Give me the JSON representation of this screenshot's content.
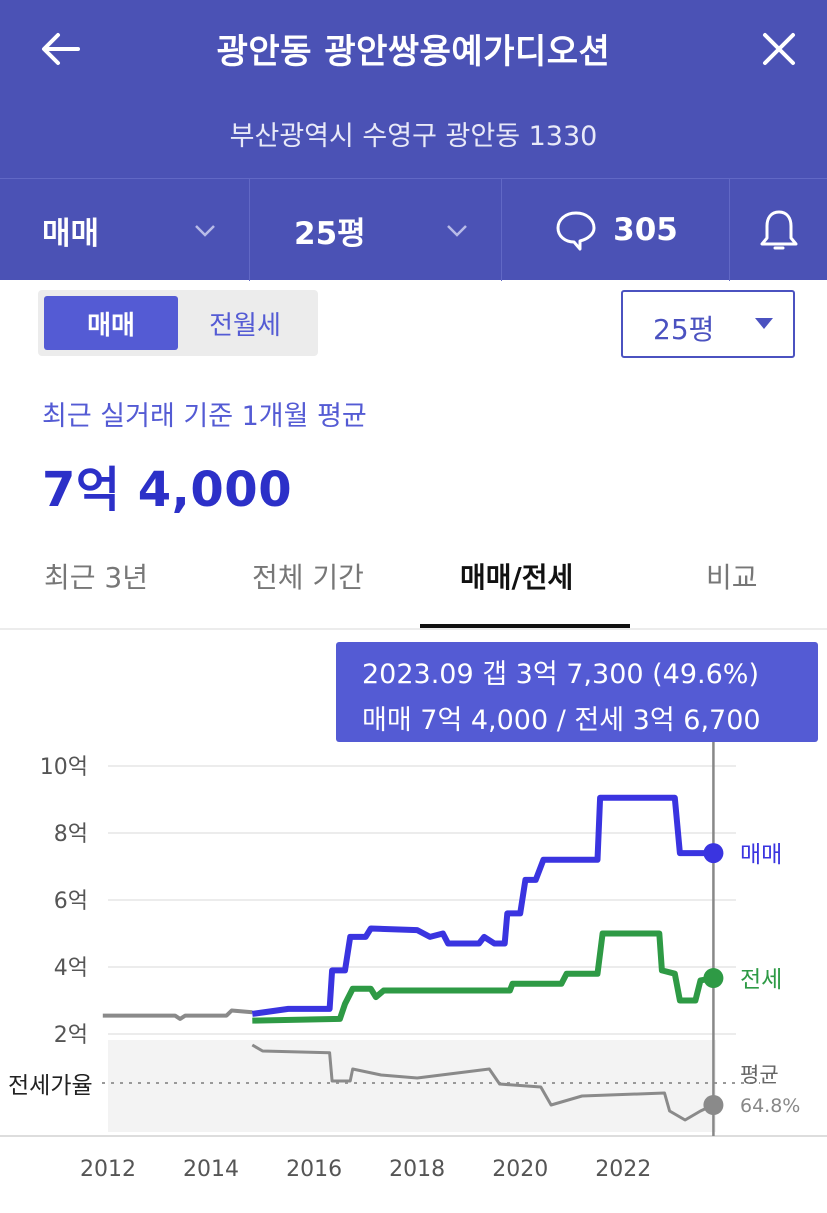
{
  "header": {
    "title": "광안동 광안쌍용예가디오션",
    "address": "부산광역시 수영구 광안동 1330",
    "deal_type": "매매",
    "size": "25평",
    "comment_count": "305"
  },
  "toggle": {
    "active": "매매",
    "inactive": "전월세"
  },
  "size_select": {
    "value": "25평"
  },
  "summary": {
    "label": "최근 실거래 기준 1개월 평균",
    "price": "7억 4,000"
  },
  "tabs": [
    {
      "label": "최근 3년",
      "active": false
    },
    {
      "label": "전체 기간",
      "active": false
    },
    {
      "label": "매매/전세",
      "active": true
    },
    {
      "label": "비교",
      "active": false
    }
  ],
  "tooltip": {
    "line1": "2023.09  갭 3억 7,300 (49.6%)",
    "line2": "매매 7억 4,000 / 전세 3억 6,700"
  },
  "colors": {
    "header": "#4b52b5",
    "accent": "#545bd4",
    "sale": "#3a34e0",
    "jeonse": "#2e9a45",
    "ratio": "#8a8a8a"
  },
  "chart_data": {
    "type": "line",
    "ylabel_ticks": [
      "10억",
      "8억",
      "6억",
      "4억",
      "2억"
    ],
    "y_tick_values": [
      10,
      8,
      6,
      4,
      2
    ],
    "ylim": [
      1.0,
      10.5
    ],
    "xlim": [
      2012,
      2023.8
    ],
    "x_ticks": [
      "2012",
      "2014",
      "2016",
      "2018",
      "2020",
      "2022"
    ],
    "x_tick_values": [
      2012,
      2014,
      2016,
      2018,
      2020,
      2022
    ],
    "grid": true,
    "ratio_label": "전세가율",
    "series": [
      {
        "name": "매매",
        "label": "매매",
        "color": "#3a34e0",
        "points": [
          [
            2014.8,
            2.6
          ],
          [
            2015.5,
            2.75
          ],
          [
            2016.3,
            2.75
          ],
          [
            2016.35,
            3.9
          ],
          [
            2016.6,
            3.9
          ],
          [
            2016.7,
            4.9
          ],
          [
            2017.0,
            4.9
          ],
          [
            2017.1,
            5.15
          ],
          [
            2018.0,
            5.1
          ],
          [
            2018.25,
            4.9
          ],
          [
            2018.5,
            5.0
          ],
          [
            2018.6,
            4.7
          ],
          [
            2019.2,
            4.7
          ],
          [
            2019.3,
            4.9
          ],
          [
            2019.5,
            4.7
          ],
          [
            2019.7,
            4.7
          ],
          [
            2019.75,
            5.6
          ],
          [
            2020.0,
            5.6
          ],
          [
            2020.1,
            6.6
          ],
          [
            2020.3,
            6.6
          ],
          [
            2020.45,
            7.2
          ],
          [
            2021.5,
            7.2
          ],
          [
            2021.55,
            9.05
          ],
          [
            2023.0,
            9.05
          ],
          [
            2023.1,
            7.4
          ],
          [
            2023.75,
            7.4
          ]
        ]
      },
      {
        "name": "전세",
        "label": "전세",
        "color": "#2e9a45",
        "points": [
          [
            2014.8,
            2.4
          ],
          [
            2016.5,
            2.45
          ],
          [
            2016.6,
            2.9
          ],
          [
            2016.75,
            3.35
          ],
          [
            2017.1,
            3.35
          ],
          [
            2017.2,
            3.1
          ],
          [
            2017.35,
            3.3
          ],
          [
            2019.8,
            3.3
          ],
          [
            2019.85,
            3.5
          ],
          [
            2020.8,
            3.5
          ],
          [
            2020.9,
            3.8
          ],
          [
            2021.5,
            3.8
          ],
          [
            2021.6,
            5.0
          ],
          [
            2022.7,
            5.0
          ],
          [
            2022.75,
            3.9
          ],
          [
            2023.0,
            3.8
          ],
          [
            2023.1,
            3.0
          ],
          [
            2023.4,
            3.0
          ],
          [
            2023.5,
            3.6
          ],
          [
            2023.75,
            3.67
          ]
        ]
      },
      {
        "name": "pre",
        "color": "#8a8a8a",
        "points": [
          [
            2011.9,
            2.55
          ],
          [
            2013.3,
            2.55
          ],
          [
            2013.4,
            2.45
          ],
          [
            2013.5,
            2.55
          ],
          [
            2014.3,
            2.55
          ],
          [
            2014.4,
            2.7
          ],
          [
            2014.8,
            2.65
          ]
        ]
      },
      {
        "name": "전세가율",
        "label": "평균",
        "sub_label": "64.8%",
        "color": "#8a8a8a",
        "ratio_points": [
          [
            2014.8,
            1.45
          ],
          [
            2015.0,
            1.35
          ],
          [
            2016.3,
            1.32
          ],
          [
            2016.35,
            0.85
          ],
          [
            2016.7,
            0.85
          ],
          [
            2016.75,
            1.05
          ],
          [
            2017.3,
            0.95
          ],
          [
            2018.0,
            0.9
          ],
          [
            2019.4,
            1.05
          ],
          [
            2019.6,
            0.8
          ],
          [
            2020.4,
            0.75
          ],
          [
            2020.6,
            0.45
          ],
          [
            2021.2,
            0.6
          ],
          [
            2022.8,
            0.65
          ],
          [
            2022.9,
            0.35
          ],
          [
            2023.2,
            0.2
          ],
          [
            2023.5,
            0.35
          ],
          [
            2023.75,
            0.45
          ]
        ]
      }
    ]
  }
}
